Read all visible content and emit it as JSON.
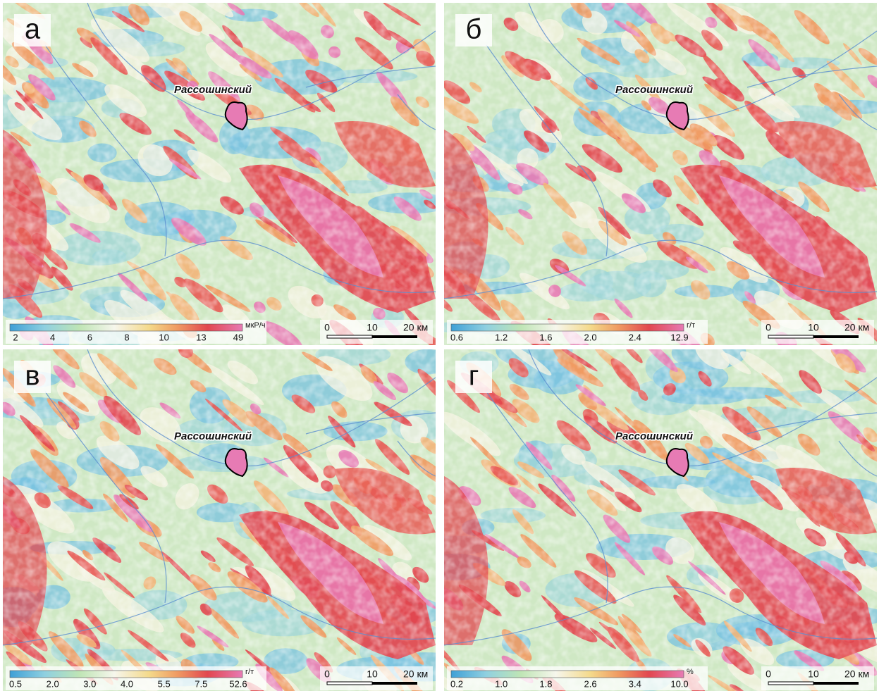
{
  "panels": [
    {
      "label": "а",
      "place": "Рассошинский",
      "legend": {
        "unit": "мкР/ч",
        "ticks": [
          "2",
          "4",
          "6",
          "8",
          "10",
          "13",
          "49"
        ]
      },
      "scale": [
        "0",
        "10",
        "20 км"
      ]
    },
    {
      "label": "б",
      "place": "Рассошинский",
      "legend": {
        "unit": "г/т",
        "ticks": [
          "0.6",
          "1.2",
          "1.6",
          "2.0",
          "2.4",
          "12.9"
        ]
      },
      "scale": [
        "0",
        "10",
        "20 км"
      ]
    },
    {
      "label": "в",
      "place": "Рассошинский",
      "legend": {
        "unit": "г/т",
        "ticks": [
          "0.5",
          "2.0",
          "3.0",
          "4.0",
          "5.5",
          "7.5",
          "52.6"
        ]
      },
      "scale": [
        "0",
        "10",
        "20 км"
      ]
    },
    {
      "label": "г",
      "place": "Рассошинский",
      "legend": {
        "unit": "%",
        "ticks": [
          "0.2",
          "1.0",
          "1.8",
          "2.6",
          "3.4",
          "10.0"
        ]
      },
      "scale": [
        "0",
        "10",
        "20 км"
      ]
    }
  ]
}
